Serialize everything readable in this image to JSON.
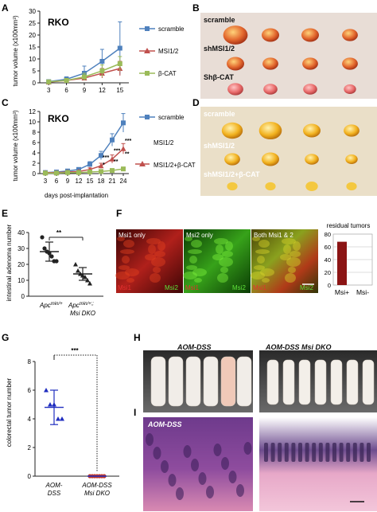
{
  "panels": {
    "A": "A",
    "B": "B",
    "C": "C",
    "D": "D",
    "E": "E",
    "F": "F",
    "G": "G",
    "H": "H",
    "I": "I"
  },
  "colors": {
    "scramble": "#4f81bd",
    "msi": "#c0504d",
    "bcat": "#9bbb59",
    "bar": "#8b1414",
    "dots": "#c0392b",
    "g_points": "#1f2dbf"
  },
  "chart_data": [
    {
      "id": "A",
      "type": "line",
      "cell_line": "RKO",
      "ylabel": "tumor volume (x100mm³)",
      "x": [
        3,
        6,
        9,
        12,
        15
      ],
      "ylim": [
        0,
        30
      ],
      "yticks": [
        0,
        5,
        10,
        15,
        20,
        25,
        30
      ],
      "series": [
        {
          "name": "scramble",
          "values": [
            0.5,
            1.5,
            4.0,
            9.0,
            14.5
          ],
          "err": [
            0.3,
            1.0,
            3.0,
            5.0,
            11.0
          ]
        },
        {
          "name": "MSI1/2",
          "values": [
            0.3,
            1.0,
            2.0,
            4.0,
            6.0
          ],
          "err": [
            0.2,
            0.5,
            1.0,
            2.0,
            3.0
          ]
        },
        {
          "name": "β-CAT",
          "values": [
            0.4,
            1.0,
            2.5,
            5.0,
            8.0
          ],
          "err": [
            0.2,
            0.5,
            1.5,
            2.5,
            3.0
          ]
        }
      ]
    },
    {
      "id": "C",
      "type": "line",
      "cell_line": "RKO",
      "ylabel": "tumor volume (x100mm³)",
      "xlabel": "days post-implantation",
      "x": [
        3,
        6,
        9,
        12,
        15,
        18,
        21,
        24
      ],
      "ylim": [
        0,
        12
      ],
      "yticks": [
        0,
        2,
        4,
        6,
        8,
        10,
        12
      ],
      "series": [
        {
          "name": "scramble",
          "values": [
            0.2,
            0.3,
            0.5,
            0.8,
            1.8,
            3.5,
            6.5,
            9.8
          ],
          "err": [
            0.1,
            0.1,
            0.2,
            0.3,
            0.5,
            0.8,
            1.2,
            1.8
          ]
        },
        {
          "name": "MSI1/2",
          "values": [
            0.2,
            0.2,
            0.3,
            0.4,
            0.8,
            1.5,
            2.8,
            4.8
          ],
          "err": [
            0.1,
            0.1,
            0.1,
            0.2,
            0.3,
            0.5,
            0.8,
            1.0
          ]
        },
        {
          "name": "MSI1/2+β-CAT",
          "values": [
            0.1,
            0.1,
            0.2,
            0.2,
            0.3,
            0.4,
            0.6,
            0.9
          ],
          "err": [
            0.05,
            0.05,
            0.1,
            0.1,
            0.1,
            0.2,
            0.2,
            0.3
          ]
        }
      ],
      "annotations": [
        "***",
        "***",
        "***",
        "*",
        "**",
        "**"
      ]
    },
    {
      "id": "E",
      "type": "scatter",
      "ylabel": "intestinal adenoma number",
      "ylim": [
        0,
        40
      ],
      "yticks": [
        0,
        10,
        20,
        30,
        40
      ],
      "categories": [
        "Apc^min/+",
        "Apc^min/+;; Msi DKO"
      ],
      "cat_main": [
        "Apc",
        "Apc"
      ],
      "cat_sup": [
        "min/+",
        "min/+;;"
      ],
      "cat_line2": [
        "",
        "Msi DKO"
      ],
      "points": [
        [
          37,
          30,
          28,
          27,
          25,
          22,
          22
        ],
        [
          20,
          16,
          14,
          13,
          12,
          10,
          8
        ]
      ],
      "mean": [
        28,
        14
      ],
      "sd": [
        6,
        4
      ],
      "significance": "**"
    },
    {
      "id": "F",
      "type": "bar",
      "title": "residual tumors",
      "categories": [
        "Msi+",
        "Msi-"
      ],
      "values": [
        68,
        0
      ],
      "ylim": [
        0,
        80
      ],
      "yticks": [
        0,
        20,
        40,
        60,
        80
      ]
    },
    {
      "id": "G",
      "type": "scatter",
      "ylabel": "colorectal tumor number",
      "ylim": [
        0,
        8
      ],
      "yticks": [
        0,
        2,
        4,
        6,
        8
      ],
      "categories": [
        "AOM-DSS",
        "AOM-DSS Msi DKO"
      ],
      "cat_line1": [
        "AOM-",
        "AOM-DSS"
      ],
      "cat_line2": [
        "DSS",
        "Msi DKO"
      ],
      "points": [
        [
          6,
          5,
          5,
          4,
          4
        ],
        [
          0,
          0,
          0,
          0,
          0,
          0,
          0
        ]
      ],
      "mean": [
        4.8,
        0
      ],
      "sd": [
        1.2,
        0
      ],
      "significance": "***"
    }
  ],
  "photos": {
    "B": {
      "rows": [
        "scramble",
        "shMSI1/2",
        "Shβ-CAT"
      ]
    },
    "D": {
      "rows": [
        "scramble",
        "shMSI1/2",
        "shMSI1/2+β-CAT"
      ]
    },
    "F": {
      "tiles": [
        {
          "title": "Msi1 only",
          "bottom_left": "Msi1",
          "bottom_right": "Msi2"
        },
        {
          "title": "Msi2 only",
          "bottom_left": "Msi1",
          "bottom_right": "Msi2"
        },
        {
          "title": "Both Msi1 & 2",
          "bottom_left": "Msi1",
          "bottom_right": "Msi2"
        }
      ]
    },
    "H": {
      "labels": [
        "AOM-DSS",
        "AOM-DSS  Msi DKO"
      ]
    },
    "I": {
      "labels": [
        "AOM-DSS"
      ]
    }
  }
}
